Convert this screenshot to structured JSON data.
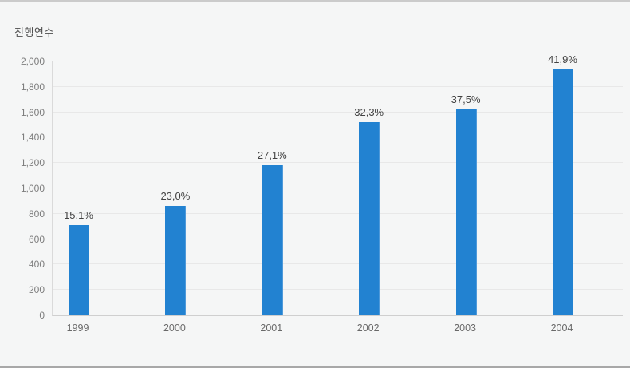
{
  "panel": {
    "background": "#f5f6f6",
    "border_top_color": "#cbcbcb",
    "border_bottom_color": "#a8a8a8"
  },
  "chart_data": {
    "type": "bar",
    "title": "진행연수",
    "ylabel": "진행연수",
    "xlabel": "",
    "categories": [
      "1999",
      "2000",
      "2001",
      "2002",
      "2003",
      "2004"
    ],
    "values": [
      710,
      860,
      1180,
      1520,
      1620,
      1940
    ],
    "bar_labels": [
      "15,1%",
      "23,0%",
      "27,1%",
      "32,3%",
      "37,5%",
      "41,9%"
    ],
    "ylim": [
      0,
      2000
    ],
    "ytick_step": 200,
    "ytick_labels": [
      "0",
      "200",
      "400",
      "600",
      "800",
      "1,000",
      "1,200",
      "1,400",
      "1,600",
      "1,800",
      "2,000"
    ],
    "grid": true,
    "legend": "none",
    "bar_color": "#2282d1",
    "label_color": "#424242",
    "tick_color": "#7d7d7d"
  }
}
